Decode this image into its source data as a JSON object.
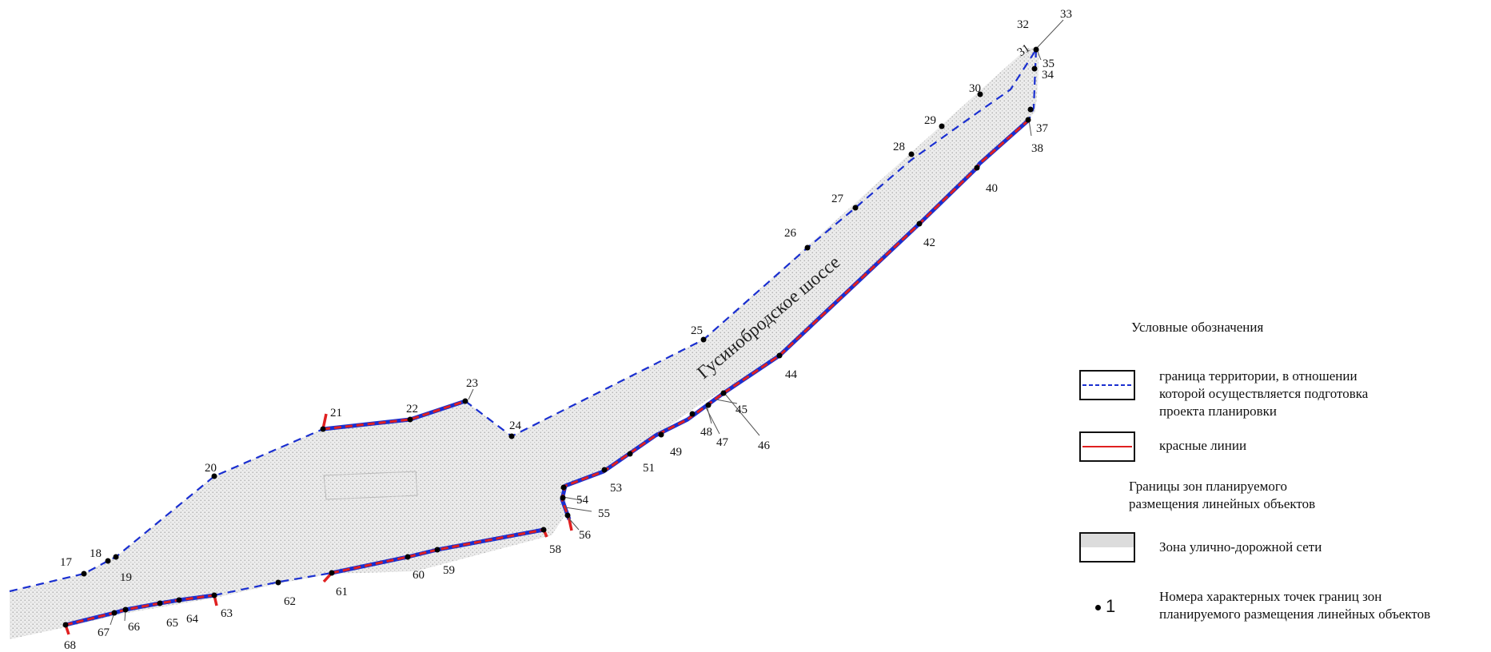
{
  "map": {
    "road_name": "Гусинобродское шоссе",
    "colors": {
      "boundary": "#1a2fd0",
      "red_line": "#e02020",
      "zone_fill": "#e6e6e6",
      "point": "#000000"
    },
    "point_labels": [
      "17",
      "18",
      "19",
      "20",
      "21",
      "22",
      "23",
      "24",
      "25",
      "26",
      "27",
      "28",
      "29",
      "30",
      "31",
      "32",
      "33",
      "34",
      "35",
      "37",
      "38",
      "40",
      "42",
      "44",
      "45",
      "46",
      "47",
      "48",
      "49",
      "51",
      "53",
      "54",
      "55",
      "56",
      "58",
      "59",
      "60",
      "61",
      "62",
      "63",
      "64",
      "65",
      "66",
      "67",
      "68"
    ]
  },
  "legend": {
    "title": "Условные обозначения",
    "items": [
      {
        "icon": "dashed-blue-line",
        "text": [
          "граница территории, в отношении",
          "которой осуществляется подготовка",
          "проекта планировки"
        ]
      },
      {
        "icon": "red-line",
        "text": [
          "красные линии"
        ]
      },
      {
        "icon": "none",
        "text": [
          "Границы зон планируемого",
          "размещения линейных объектов"
        ]
      },
      {
        "icon": "dotted-gray-fill",
        "text": [
          "Зона улично-дорожной сети"
        ]
      },
      {
        "icon": "point-dot",
        "sample": "1",
        "text": [
          "Номера характерных точек границ зон",
          "планируемого размещения линейных объектов"
        ]
      }
    ]
  }
}
